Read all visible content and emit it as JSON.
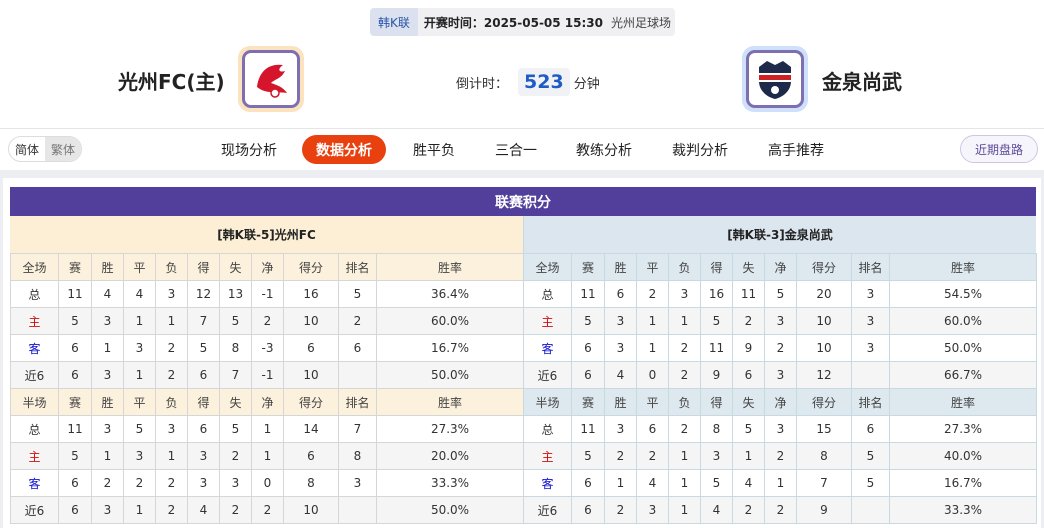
{
  "match": {
    "league": "韩K联",
    "kickoff": "开赛时间：2025-05-05 15:30",
    "venue": "光州足球场",
    "home": "光州FC(主)",
    "away": "金泉尚武",
    "countdown_label": "倒计时：",
    "countdown_value": "523",
    "countdown_unit": "分钟"
  },
  "nav": {
    "lang": [
      "简体",
      "繁体"
    ],
    "tabs": [
      "现场分析",
      "数据分析",
      "胜平负",
      "三合一",
      "教练分析",
      "裁判分析",
      "高手推荐"
    ],
    "active": "数据分析",
    "recent": "近期盘路"
  },
  "standings": {
    "title": "联赛积分",
    "home_header": "[韩K联-5]光州FC",
    "away_header": "[韩K联-3]金泉尚武",
    "columns_full": [
      "全场",
      "赛",
      "胜",
      "平",
      "负",
      "得",
      "失",
      "净",
      "得分",
      "排名",
      "胜率"
    ],
    "columns_half": [
      "半场",
      "赛",
      "胜",
      "平",
      "负",
      "得",
      "失",
      "净",
      "得分",
      "排名",
      "胜率"
    ],
    "home_full": [
      [
        "总",
        "11",
        "4",
        "4",
        "3",
        "12",
        "13",
        "-1",
        "16",
        "5",
        "36.4%"
      ],
      [
        "主",
        "5",
        "3",
        "1",
        "1",
        "7",
        "5",
        "2",
        "10",
        "2",
        "60.0%"
      ],
      [
        "客",
        "6",
        "1",
        "3",
        "2",
        "5",
        "8",
        "-3",
        "6",
        "6",
        "16.7%"
      ],
      [
        "近6",
        "6",
        "3",
        "1",
        "2",
        "6",
        "7",
        "-1",
        "10",
        "",
        "50.0%"
      ]
    ],
    "home_half": [
      [
        "总",
        "11",
        "3",
        "5",
        "3",
        "6",
        "5",
        "1",
        "14",
        "7",
        "27.3%"
      ],
      [
        "主",
        "5",
        "1",
        "3",
        "1",
        "3",
        "2",
        "1",
        "6",
        "8",
        "20.0%"
      ],
      [
        "客",
        "6",
        "2",
        "2",
        "2",
        "3",
        "3",
        "0",
        "8",
        "3",
        "33.3%"
      ],
      [
        "近6",
        "6",
        "3",
        "1",
        "2",
        "4",
        "2",
        "2",
        "10",
        "",
        "50.0%"
      ]
    ],
    "away_full": [
      [
        "总",
        "11",
        "6",
        "2",
        "3",
        "16",
        "11",
        "5",
        "20",
        "3",
        "54.5%"
      ],
      [
        "主",
        "5",
        "3",
        "1",
        "1",
        "5",
        "2",
        "3",
        "10",
        "3",
        "60.0%"
      ],
      [
        "客",
        "6",
        "3",
        "1",
        "2",
        "11",
        "9",
        "2",
        "10",
        "3",
        "50.0%"
      ],
      [
        "近6",
        "6",
        "4",
        "0",
        "2",
        "9",
        "6",
        "3",
        "12",
        "",
        "66.7%"
      ]
    ],
    "away_half": [
      [
        "总",
        "11",
        "3",
        "6",
        "2",
        "8",
        "5",
        "3",
        "15",
        "6",
        "27.3%"
      ],
      [
        "主",
        "5",
        "2",
        "2",
        "1",
        "3",
        "1",
        "2",
        "8",
        "5",
        "40.0%"
      ],
      [
        "客",
        "6",
        "1",
        "4",
        "1",
        "5",
        "4",
        "1",
        "7",
        "5",
        "16.7%"
      ],
      [
        "近6",
        "6",
        "2",
        "3",
        "1",
        "4",
        "2",
        "2",
        "9",
        "",
        "33.3%"
      ]
    ]
  },
  "colors": {
    "accent": "#e8410f",
    "title_bg": "#523f9b",
    "home_red": "#d01010",
    "away_blue": "#1010d0"
  }
}
